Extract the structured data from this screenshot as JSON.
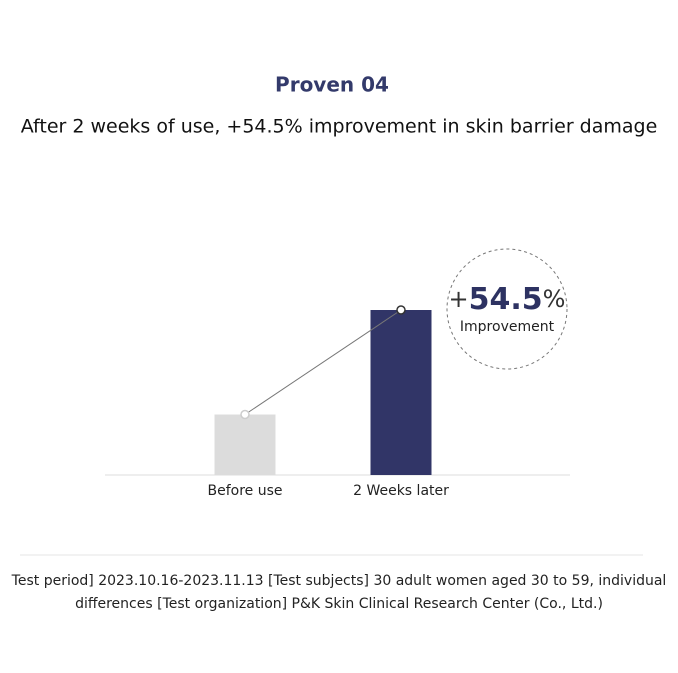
{
  "chart_data": {
    "type": "bar",
    "title": "Proven 04",
    "subtitle": "After 2 weeks of use, +54.5% improvement in skin barrier damage",
    "categories": [
      "Before use",
      "2 Weeks later"
    ],
    "values": [
      22,
      60
    ],
    "colors": [
      "#dcdcdc",
      "#313567"
    ],
    "ylim": [
      0,
      100
    ],
    "annotation": {
      "sign": "+",
      "number": 54.5,
      "unit": "%",
      "label": "Improvement"
    },
    "footnote": "Test period] 2023.10.16-2023.11.13 [Test subjects] 30 adult women aged 30 to 59, individual differences [Test organization] P&K Skin Clinical Research Center (Co., Ltd.)"
  }
}
